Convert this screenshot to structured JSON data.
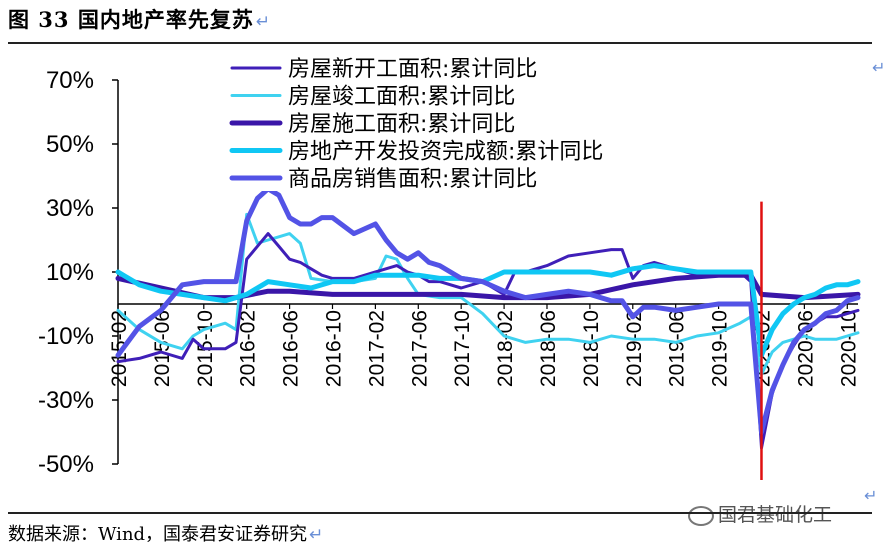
{
  "header": {
    "title": "图  33 国内地产率先复苏",
    "return_mark": "↵"
  },
  "footer": {
    "source": "数据来源：Wind，国泰君安证券研究",
    "return_mark": "↵",
    "watermark": "国君基础化工",
    "corner_mark": "↵"
  },
  "colors": {
    "new_start": "#3f1fb8",
    "completed": "#3fd2f0",
    "construction": "#3a16a8",
    "investment": "#10c7f4",
    "sales": "#5353e6",
    "marker": "#e01010"
  },
  "chart_data": {
    "type": "line",
    "title": "",
    "xlabel": "",
    "ylabel": "",
    "ylim": [
      -50,
      70
    ],
    "yticks": [
      70,
      50,
      30,
      10,
      -10,
      -30,
      -50
    ],
    "ytick_labels": [
      "70%",
      "50%",
      "30%",
      "10%",
      "-10%",
      "-30%",
      "-50%"
    ],
    "x_start": "2015-02",
    "x_end": "2020-11",
    "xtick_labels": [
      "2015-02",
      "2015-06",
      "2015-10",
      "2016-02",
      "2016-06",
      "2016-10",
      "2017-02",
      "2017-06",
      "2017-10",
      "2018-02",
      "2018-06",
      "2018-10",
      "2019-02",
      "2019-06",
      "2019-10",
      "2020-02",
      "2020-06",
      "2020-10"
    ],
    "vline_x": "2020-02",
    "vline_range": [
      -55,
      32
    ],
    "legend_position": "top",
    "series": [
      {
        "name": "房屋新开工面积:累计同比",
        "color_key": "new_start",
        "width": 3,
        "points": [
          [
            "2015-02",
            -18
          ],
          [
            "2015-04",
            -17
          ],
          [
            "2015-06",
            -15
          ],
          [
            "2015-08",
            -17
          ],
          [
            "2015-09",
            -11
          ],
          [
            "2015-10",
            -14
          ],
          [
            "2015-12",
            -14
          ],
          [
            "2016-01",
            -12
          ],
          [
            "2016-02",
            14
          ],
          [
            "2016-04",
            22
          ],
          [
            "2016-05",
            18
          ],
          [
            "2016-06",
            14
          ],
          [
            "2016-07",
            13
          ],
          [
            "2016-08",
            11
          ],
          [
            "2016-09",
            9
          ],
          [
            "2016-10",
            8
          ],
          [
            "2016-12",
            8
          ],
          [
            "2017-02",
            10
          ],
          [
            "2017-04",
            12
          ],
          [
            "2017-05",
            10
          ],
          [
            "2017-06",
            9
          ],
          [
            "2017-07",
            7
          ],
          [
            "2017-08",
            7
          ],
          [
            "2017-10",
            5
          ],
          [
            "2017-12",
            7
          ],
          [
            "2018-02",
            3
          ],
          [
            "2018-03",
            10
          ],
          [
            "2018-04",
            10
          ],
          [
            "2018-06",
            12
          ],
          [
            "2018-08",
            15
          ],
          [
            "2018-10",
            16
          ],
          [
            "2018-12",
            17
          ],
          [
            "2019-01",
            17
          ],
          [
            "2019-02",
            8
          ],
          [
            "2019-03",
            12
          ],
          [
            "2019-04",
            13
          ],
          [
            "2019-06",
            11
          ],
          [
            "2019-08",
            9
          ],
          [
            "2019-10",
            10
          ],
          [
            "2019-12",
            10
          ],
          [
            "2020-01",
            7
          ],
          [
            "2020-02",
            -45
          ],
          [
            "2020-03",
            -28
          ],
          [
            "2020-04",
            -19
          ],
          [
            "2020-05",
            -13
          ],
          [
            "2020-06",
            -8
          ],
          [
            "2020-07",
            -6
          ],
          [
            "2020-08",
            -4
          ],
          [
            "2020-09",
            -4
          ],
          [
            "2020-10",
            -3
          ],
          [
            "2020-11",
            -2
          ]
        ]
      },
      {
        "name": "房屋竣工面积:累计同比",
        "color_key": "completed",
        "width": 3,
        "points": [
          [
            "2015-02",
            -2
          ],
          [
            "2015-04",
            -8
          ],
          [
            "2015-06",
            -12
          ],
          [
            "2015-08",
            -14
          ],
          [
            "2015-09",
            -10
          ],
          [
            "2015-10",
            -8
          ],
          [
            "2015-12",
            -6
          ],
          [
            "2016-01",
            -8
          ],
          [
            "2016-02",
            28
          ],
          [
            "2016-03",
            19
          ],
          [
            "2016-04",
            20
          ],
          [
            "2016-05",
            21
          ],
          [
            "2016-06",
            22
          ],
          [
            "2016-07",
            19
          ],
          [
            "2016-08",
            8
          ],
          [
            "2016-10",
            7
          ],
          [
            "2016-12",
            7
          ],
          [
            "2017-02",
            8
          ],
          [
            "2017-03",
            15
          ],
          [
            "2017-04",
            14
          ],
          [
            "2017-05",
            8
          ],
          [
            "2017-06",
            3
          ],
          [
            "2017-08",
            2
          ],
          [
            "2017-10",
            2
          ],
          [
            "2017-12",
            -3
          ],
          [
            "2018-02",
            -10
          ],
          [
            "2018-04",
            -12
          ],
          [
            "2018-06",
            -11
          ],
          [
            "2018-08",
            -11
          ],
          [
            "2018-10",
            -12
          ],
          [
            "2018-12",
            -10
          ],
          [
            "2019-02",
            -11
          ],
          [
            "2019-04",
            -11
          ],
          [
            "2019-06",
            -12
          ],
          [
            "2019-08",
            -10
          ],
          [
            "2019-10",
            -9
          ],
          [
            "2019-12",
            -6
          ],
          [
            "2020-01",
            -4
          ],
          [
            "2020-02",
            -22
          ],
          [
            "2020-03",
            -15
          ],
          [
            "2020-04",
            -12
          ],
          [
            "2020-05",
            -11
          ],
          [
            "2020-06",
            -10
          ],
          [
            "2020-07",
            -11
          ],
          [
            "2020-08",
            -11
          ],
          [
            "2020-09",
            -11
          ],
          [
            "2020-10",
            -10
          ],
          [
            "2020-11",
            -9
          ]
        ]
      },
      {
        "name": "房屋施工面积:累计同比",
        "color_key": "construction",
        "width": 5,
        "points": [
          [
            "2015-02",
            8
          ],
          [
            "2015-06",
            5
          ],
          [
            "2015-10",
            2
          ],
          [
            "2016-01",
            2
          ],
          [
            "2016-04",
            4
          ],
          [
            "2016-06",
            4
          ],
          [
            "2016-10",
            3
          ],
          [
            "2017-02",
            3
          ],
          [
            "2017-06",
            3
          ],
          [
            "2017-10",
            3
          ],
          [
            "2018-02",
            2
          ],
          [
            "2018-06",
            2
          ],
          [
            "2018-10",
            3
          ],
          [
            "2019-02",
            6
          ],
          [
            "2019-06",
            8
          ],
          [
            "2019-10",
            9
          ],
          [
            "2020-01",
            9
          ],
          [
            "2020-02",
            3
          ],
          [
            "2020-06",
            2
          ],
          [
            "2020-11",
            3
          ]
        ]
      },
      {
        "name": "房地产开发投资完成额:累计同比",
        "color_key": "investment",
        "width": 5,
        "points": [
          [
            "2015-02",
            10
          ],
          [
            "2015-04",
            6
          ],
          [
            "2015-06",
            4
          ],
          [
            "2015-08",
            3
          ],
          [
            "2015-10",
            2
          ],
          [
            "2015-12",
            1
          ],
          [
            "2016-02",
            3
          ],
          [
            "2016-04",
            7
          ],
          [
            "2016-06",
            6
          ],
          [
            "2016-08",
            5
          ],
          [
            "2016-10",
            7
          ],
          [
            "2016-12",
            7
          ],
          [
            "2017-02",
            9
          ],
          [
            "2017-04",
            9
          ],
          [
            "2017-06",
            9
          ],
          [
            "2017-08",
            8
          ],
          [
            "2017-10",
            8
          ],
          [
            "2017-12",
            7
          ],
          [
            "2018-02",
            10
          ],
          [
            "2018-04",
            10
          ],
          [
            "2018-06",
            10
          ],
          [
            "2018-08",
            10
          ],
          [
            "2018-10",
            10
          ],
          [
            "2018-12",
            9
          ],
          [
            "2019-02",
            11
          ],
          [
            "2019-04",
            12
          ],
          [
            "2019-06",
            11
          ],
          [
            "2019-08",
            10
          ],
          [
            "2019-10",
            10
          ],
          [
            "2020-01",
            10
          ],
          [
            "2020-02",
            -16
          ],
          [
            "2020-03",
            -8
          ],
          [
            "2020-04",
            -3
          ],
          [
            "2020-05",
            0
          ],
          [
            "2020-06",
            2
          ],
          [
            "2020-07",
            3
          ],
          [
            "2020-08",
            5
          ],
          [
            "2020-09",
            6
          ],
          [
            "2020-10",
            6
          ],
          [
            "2020-11",
            7
          ]
        ]
      },
      {
        "name": "商品房销售面积:累计同比",
        "color_key": "sales",
        "width": 5,
        "points": [
          [
            "2015-02",
            -16
          ],
          [
            "2015-04",
            -7
          ],
          [
            "2015-06",
            -2
          ],
          [
            "2015-08",
            6
          ],
          [
            "2015-10",
            7
          ],
          [
            "2015-12",
            7
          ],
          [
            "2016-01",
            7
          ],
          [
            "2016-02",
            26
          ],
          [
            "2016-03",
            33
          ],
          [
            "2016-04",
            36
          ],
          [
            "2016-05",
            34
          ],
          [
            "2016-06",
            27
          ],
          [
            "2016-07",
            25
          ],
          [
            "2016-08",
            25
          ],
          [
            "2016-09",
            27
          ],
          [
            "2016-10",
            27
          ],
          [
            "2016-12",
            22
          ],
          [
            "2017-02",
            25
          ],
          [
            "2017-03",
            20
          ],
          [
            "2017-04",
            16
          ],
          [
            "2017-05",
            14
          ],
          [
            "2017-06",
            16
          ],
          [
            "2017-07",
            13
          ],
          [
            "2017-08",
            12
          ],
          [
            "2017-10",
            8
          ],
          [
            "2017-12",
            7
          ],
          [
            "2018-02",
            4
          ],
          [
            "2018-04",
            2
          ],
          [
            "2018-06",
            3
          ],
          [
            "2018-08",
            4
          ],
          [
            "2018-10",
            3
          ],
          [
            "2018-12",
            1
          ],
          [
            "2019-01",
            1
          ],
          [
            "2019-02",
            -4
          ],
          [
            "2019-03",
            -1
          ],
          [
            "2019-04",
            -1
          ],
          [
            "2019-06",
            -2
          ],
          [
            "2019-08",
            -1
          ],
          [
            "2019-10",
            0
          ],
          [
            "2019-12",
            0
          ],
          [
            "2020-01",
            0
          ],
          [
            "2020-02",
            -40
          ],
          [
            "2020-03",
            -27
          ],
          [
            "2020-04",
            -19
          ],
          [
            "2020-05",
            -12
          ],
          [
            "2020-06",
            -8
          ],
          [
            "2020-07",
            -6
          ],
          [
            "2020-08",
            -3
          ],
          [
            "2020-09",
            -2
          ],
          [
            "2020-10",
            1
          ],
          [
            "2020-11",
            2
          ]
        ]
      }
    ]
  }
}
